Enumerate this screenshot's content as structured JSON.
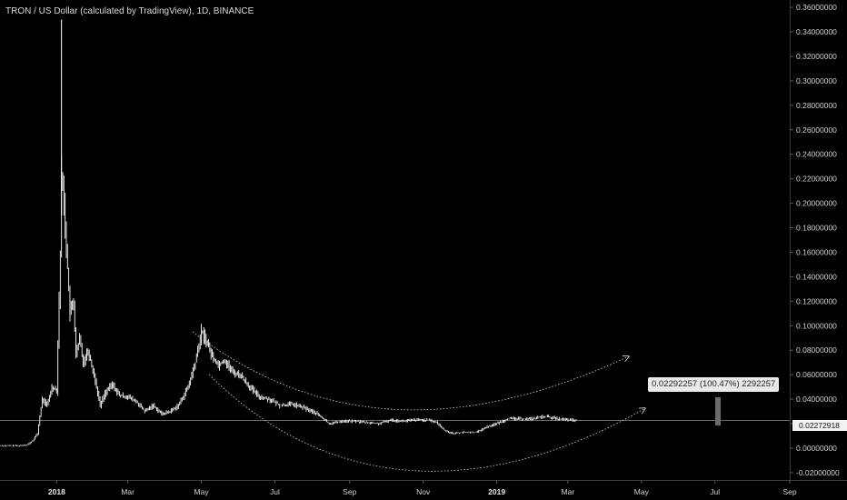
{
  "header": {
    "title": "TRON / US Dollar (calculated by TradingView), 1D, BINANCE"
  },
  "measure": {
    "label": "0.02292257 (100.47%) 2292257"
  },
  "last_price": {
    "label": "0.02272918",
    "value": 0.02272918
  },
  "colors": {
    "background": "#000000",
    "candles": "#ffffff",
    "axis_text": "#cfcfcf",
    "price_line": "#888888",
    "measure_bar": "#6b6b6b"
  },
  "chart_data": {
    "type": "line",
    "title": "TRON / US Dollar (calculated by TradingView), 1D, BINANCE",
    "x_range": [
      "2017-11-15",
      "2019-09-01"
    ],
    "y_range": [
      -0.026,
      0.366
    ],
    "y_ticks": [
      0.36,
      0.34,
      0.32,
      0.3,
      0.28,
      0.26,
      0.24,
      0.22,
      0.2,
      0.18,
      0.16,
      0.14,
      0.12,
      0.1,
      0.08,
      0.06,
      0.04,
      0.02,
      0.0,
      -0.02
    ],
    "y_tick_labels": [
      "0.36000000",
      "0.34000000",
      "0.32000000",
      "0.30000000",
      "0.28000000",
      "0.26000000",
      "0.24000000",
      "0.22000000",
      "0.20000000",
      "0.18000000",
      "0.16000000",
      "0.14000000",
      "0.12000000",
      "0.10000000",
      "0.08000000",
      "0.06000000",
      "0.04000000",
      "0.02000000",
      "0.00000000",
      "-0.02000000"
    ],
    "x_ticks": [
      {
        "date": "2018-01-01",
        "label": "2018",
        "bold": true
      },
      {
        "date": "2018-03-01",
        "label": "Mar",
        "bold": false
      },
      {
        "date": "2018-05-01",
        "label": "May",
        "bold": false
      },
      {
        "date": "2018-07-01",
        "label": "Jul",
        "bold": false
      },
      {
        "date": "2018-09-01",
        "label": "Sep",
        "bold": false
      },
      {
        "date": "2018-11-01",
        "label": "Nov",
        "bold": false
      },
      {
        "date": "2019-01-01",
        "label": "2019",
        "bold": true
      },
      {
        "date": "2019-03-01",
        "label": "Mar",
        "bold": false
      },
      {
        "date": "2019-05-01",
        "label": "May",
        "bold": false
      },
      {
        "date": "2019-07-01",
        "label": "Jul",
        "bold": false
      },
      {
        "date": "2019-09-01",
        "label": "Sep",
        "bold": false
      }
    ],
    "series": [
      {
        "values": [
          {
            "x": "2017-11-15",
            "y": 0.002
          },
          {
            "x": "2017-12-01",
            "y": 0.002
          },
          {
            "x": "2017-12-08",
            "y": 0.003
          },
          {
            "x": "2017-12-12",
            "y": 0.006
          },
          {
            "x": "2017-12-16",
            "y": 0.012
          },
          {
            "x": "2017-12-20",
            "y": 0.04
          },
          {
            "x": "2017-12-24",
            "y": 0.035
          },
          {
            "x": "2017-12-28",
            "y": 0.05
          },
          {
            "x": "2018-01-01",
            "y": 0.048
          },
          {
            "x": "2018-01-04",
            "y": 0.16
          },
          {
            "x": "2018-01-05",
            "y": 0.225
          },
          {
            "x": "2018-01-07",
            "y": 0.2
          },
          {
            "x": "2018-01-09",
            "y": 0.165
          },
          {
            "x": "2018-01-12",
            "y": 0.11
          },
          {
            "x": "2018-01-15",
            "y": 0.12
          },
          {
            "x": "2018-01-17",
            "y": 0.075
          },
          {
            "x": "2018-01-20",
            "y": 0.09
          },
          {
            "x": "2018-01-23",
            "y": 0.07
          },
          {
            "x": "2018-01-27",
            "y": 0.08
          },
          {
            "x": "2018-02-02",
            "y": 0.055
          },
          {
            "x": "2018-02-06",
            "y": 0.035
          },
          {
            "x": "2018-02-10",
            "y": 0.045
          },
          {
            "x": "2018-02-16",
            "y": 0.052
          },
          {
            "x": "2018-02-22",
            "y": 0.043
          },
          {
            "x": "2018-03-01",
            "y": 0.042
          },
          {
            "x": "2018-03-08",
            "y": 0.038
          },
          {
            "x": "2018-03-15",
            "y": 0.03
          },
          {
            "x": "2018-03-22",
            "y": 0.035
          },
          {
            "x": "2018-03-29",
            "y": 0.028
          },
          {
            "x": "2018-04-05",
            "y": 0.03
          },
          {
            "x": "2018-04-12",
            "y": 0.035
          },
          {
            "x": "2018-04-20",
            "y": 0.05
          },
          {
            "x": "2018-04-26",
            "y": 0.07
          },
          {
            "x": "2018-05-01",
            "y": 0.095
          },
          {
            "x": "2018-05-05",
            "y": 0.088
          },
          {
            "x": "2018-05-10",
            "y": 0.075
          },
          {
            "x": "2018-05-15",
            "y": 0.068
          },
          {
            "x": "2018-05-20",
            "y": 0.072
          },
          {
            "x": "2018-05-27",
            "y": 0.062
          },
          {
            "x": "2018-06-02",
            "y": 0.06
          },
          {
            "x": "2018-06-10",
            "y": 0.05
          },
          {
            "x": "2018-06-18",
            "y": 0.042
          },
          {
            "x": "2018-06-26",
            "y": 0.04
          },
          {
            "x": "2018-07-05",
            "y": 0.035
          },
          {
            "x": "2018-07-15",
            "y": 0.036
          },
          {
            "x": "2018-07-25",
            "y": 0.033
          },
          {
            "x": "2018-08-05",
            "y": 0.028
          },
          {
            "x": "2018-08-15",
            "y": 0.02
          },
          {
            "x": "2018-08-25",
            "y": 0.022
          },
          {
            "x": "2018-09-05",
            "y": 0.022
          },
          {
            "x": "2018-09-15",
            "y": 0.021
          },
          {
            "x": "2018-09-25",
            "y": 0.02
          },
          {
            "x": "2018-10-05",
            "y": 0.023
          },
          {
            "x": "2018-10-15",
            "y": 0.022
          },
          {
            "x": "2018-10-25",
            "y": 0.023
          },
          {
            "x": "2018-11-05",
            "y": 0.023
          },
          {
            "x": "2018-11-12",
            "y": 0.021
          },
          {
            "x": "2018-11-18",
            "y": 0.015
          },
          {
            "x": "2018-11-25",
            "y": 0.012
          },
          {
            "x": "2018-12-05",
            "y": 0.013
          },
          {
            "x": "2018-12-15",
            "y": 0.013
          },
          {
            "x": "2018-12-25",
            "y": 0.018
          },
          {
            "x": "2019-01-01",
            "y": 0.02
          },
          {
            "x": "2019-01-10",
            "y": 0.024
          },
          {
            "x": "2019-01-20",
            "y": 0.024
          },
          {
            "x": "2019-01-30",
            "y": 0.024
          },
          {
            "x": "2019-02-10",
            "y": 0.026
          },
          {
            "x": "2019-02-20",
            "y": 0.024
          },
          {
            "x": "2019-03-01",
            "y": 0.023
          },
          {
            "x": "2019-03-08",
            "y": 0.0227
          }
        ]
      }
    ],
    "annotations": {
      "measure_label": "0.02292257 (100.47%) 2292257",
      "last_price_label": "0.02272918"
    }
  }
}
